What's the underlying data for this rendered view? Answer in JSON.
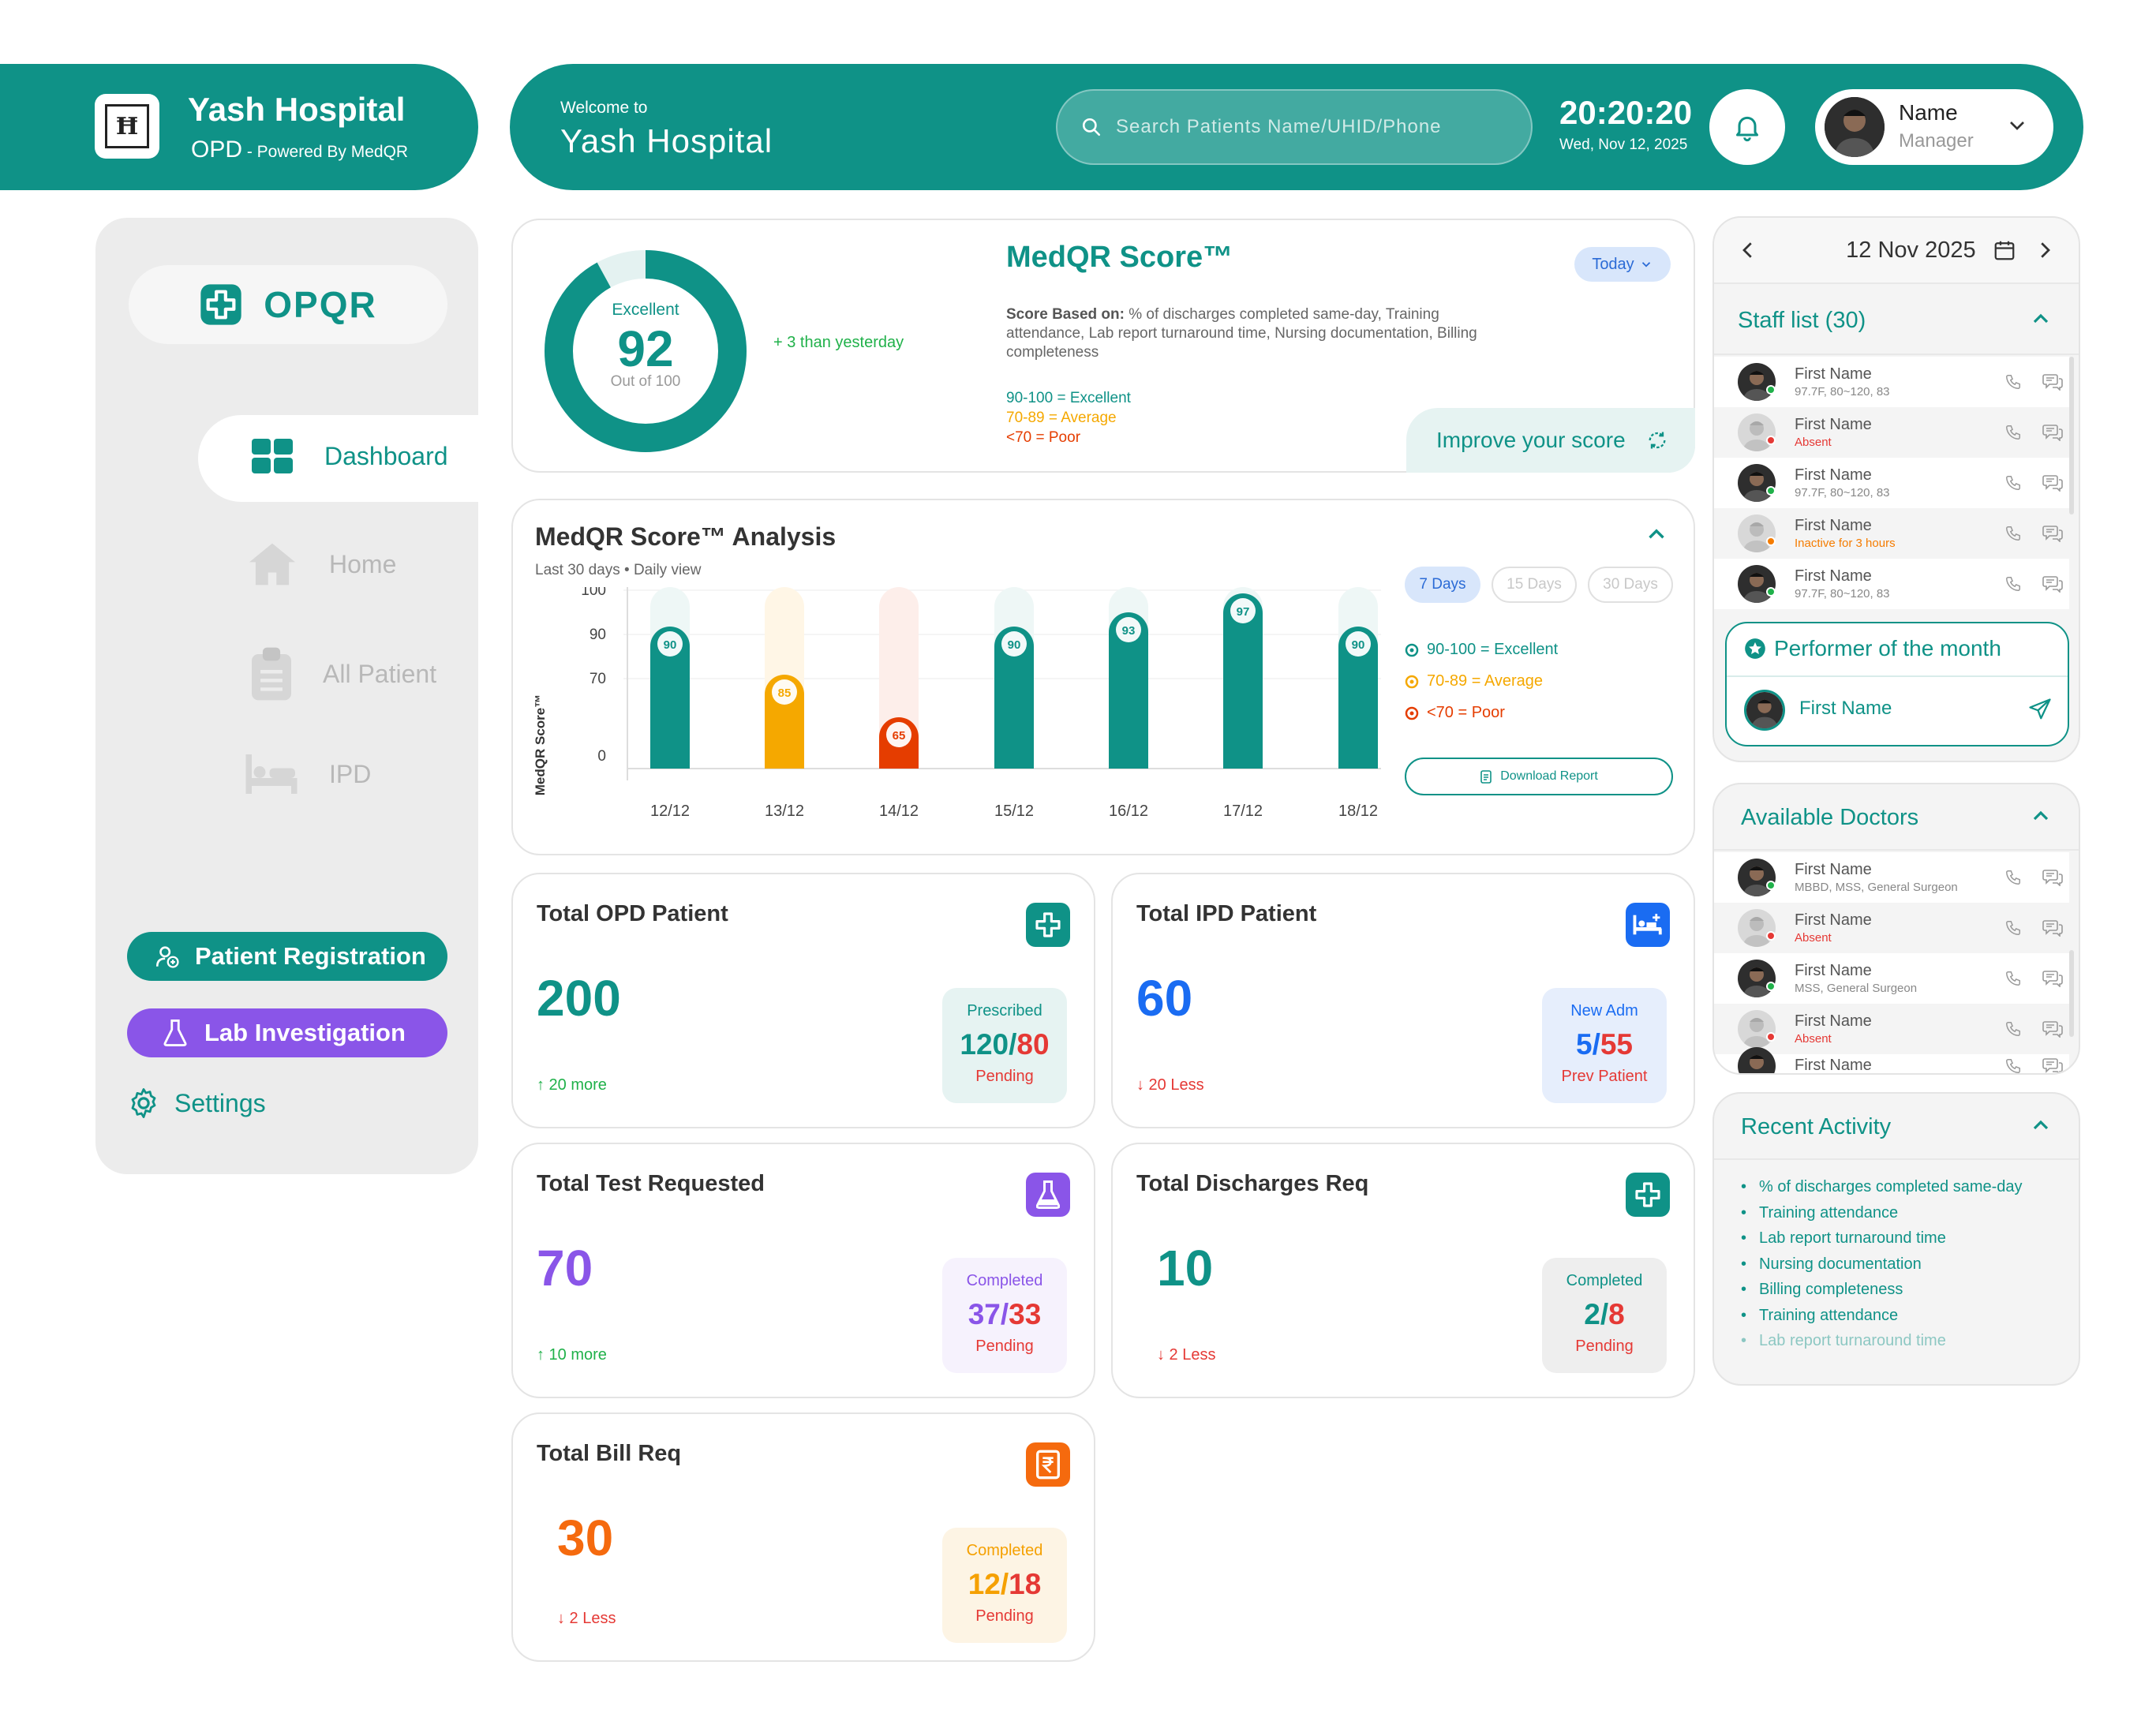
{
  "brand": {
    "name": "Yash Hospital",
    "sub": "OPD",
    "powered": " - Powered By MedQR"
  },
  "header": {
    "welcome": "Welcome to",
    "hospital": "Yash Hospital",
    "search_placeholder": "Search Patients Name/UHID/Phone",
    "time": "20:20:20",
    "date": "Wed, Nov 12, 2025",
    "user_name": "Name",
    "user_role": "Manager"
  },
  "sidebar": {
    "logo_text": "OPQR",
    "items": [
      {
        "label": "Dashboard",
        "active": true
      },
      {
        "label": "Home"
      },
      {
        "label": "All Patient"
      },
      {
        "label": "IPD"
      }
    ],
    "patient_registration": "Patient Registration",
    "lab_investigation": "Lab Investigation",
    "settings": "Settings"
  },
  "score": {
    "title": "MedQR Score™",
    "rating": "Excellent",
    "value": "92",
    "out_of": "Out of 100",
    "fraction": 0.92,
    "delta": "+ 3 than yesterday",
    "filter": "Today",
    "basis_label": "Score Based on:",
    "basis_text": " % of discharges completed same-day, Training attendance, Lab report turnaround time, Nursing documentation, Billing completeness",
    "legend": [
      "90-100 = Excellent",
      "70-89 = Average",
      "<70 = Poor"
    ],
    "improve": "Improve your score",
    "colors": {
      "excellent": "#0f9287",
      "average": "#f5a800",
      "poor": "#e53d00"
    }
  },
  "analysis": {
    "title": "MedQR Score™ Analysis",
    "subtitle": "Last 30 days • Daily view",
    "ranges": [
      "7 Days",
      "15 Days",
      "30 Days"
    ],
    "legend": [
      "90-100 = Excellent",
      "70-89 = Average",
      "<70 = Poor"
    ],
    "download": "Download Report",
    "chart_data": {
      "type": "bar",
      "ylabel": "MedQR Score™",
      "yticks": [
        "100",
        "90",
        "70",
        "0"
      ],
      "categories": [
        "12/12",
        "13/12",
        "14/12",
        "15/12",
        "16/12",
        "17/12",
        "18/12"
      ],
      "values": [
        90,
        85,
        65,
        90,
        93,
        97,
        90
      ],
      "labels": [
        "90",
        "85",
        "65",
        "90",
        "93",
        "97",
        "90"
      ],
      "ylim": [
        0,
        100
      ]
    }
  },
  "stats": [
    {
      "title": "Total OPD Patient",
      "value": "200",
      "trend": "↑ 20 more",
      "top": "Prescribed",
      "a": "120",
      "b": "80",
      "bottom": "Pending"
    },
    {
      "title": "Total IPD Patient",
      "value": "60",
      "trend": "↓ 20 Less",
      "top": "New Adm",
      "a": "5",
      "b": "55",
      "bottom": "Prev Patient"
    },
    {
      "title": "Total Test Requested",
      "value": "70",
      "trend": "↑ 10 more",
      "top": "Completed",
      "a": "37",
      "b": "33",
      "bottom": "Pending"
    },
    {
      "title": "Total Discharges Req",
      "value": "10",
      "trend": "↓ 2 Less",
      "top": "Completed",
      "a": "2",
      "b": "8",
      "bottom": "Pending"
    },
    {
      "title": "Total Bill Req",
      "value": "30",
      "trend": "↓ 2 Less",
      "top": "Completed",
      "a": "12",
      "b": "18",
      "bottom": "Pending"
    }
  ],
  "calendar": {
    "date": "12 Nov 2025"
  },
  "staff": {
    "title": "Staff list (30)",
    "rows": [
      {
        "name": "First Name",
        "status": "97.7F, 80~120, 83",
        "state": "present"
      },
      {
        "name": "First Name",
        "status": "Absent",
        "state": "absent"
      },
      {
        "name": "First Name",
        "status": "97.7F, 80~120, 83",
        "state": "present"
      },
      {
        "name": "First Name",
        "status": "Inactive for 3 hours",
        "state": "inactive"
      },
      {
        "name": "First Name",
        "status": "97.7F, 80~120, 83",
        "state": "present"
      }
    ],
    "performer_title": "Performer of the month",
    "performer_name": "First Name"
  },
  "doctors": {
    "title": "Available Doctors",
    "rows": [
      {
        "name": "First Name",
        "status": "MBBD, MSS, General Surgeon",
        "state": "present"
      },
      {
        "name": "First Name",
        "status": "Absent",
        "state": "absent"
      },
      {
        "name": "First Name",
        "status": "MSS, General Surgeon",
        "state": "present"
      },
      {
        "name": "First Name",
        "status": "Absent",
        "state": "absent"
      },
      {
        "name": "First Name",
        "status": "",
        "state": "present"
      }
    ]
  },
  "activity": {
    "title": "Recent Activity",
    "items": [
      "% of discharges completed same-day",
      "Training attendance",
      "Lab report turnaround time",
      "Nursing documentation",
      "Billing completeness",
      " Training attendance",
      "Lab report turnaround time"
    ]
  }
}
